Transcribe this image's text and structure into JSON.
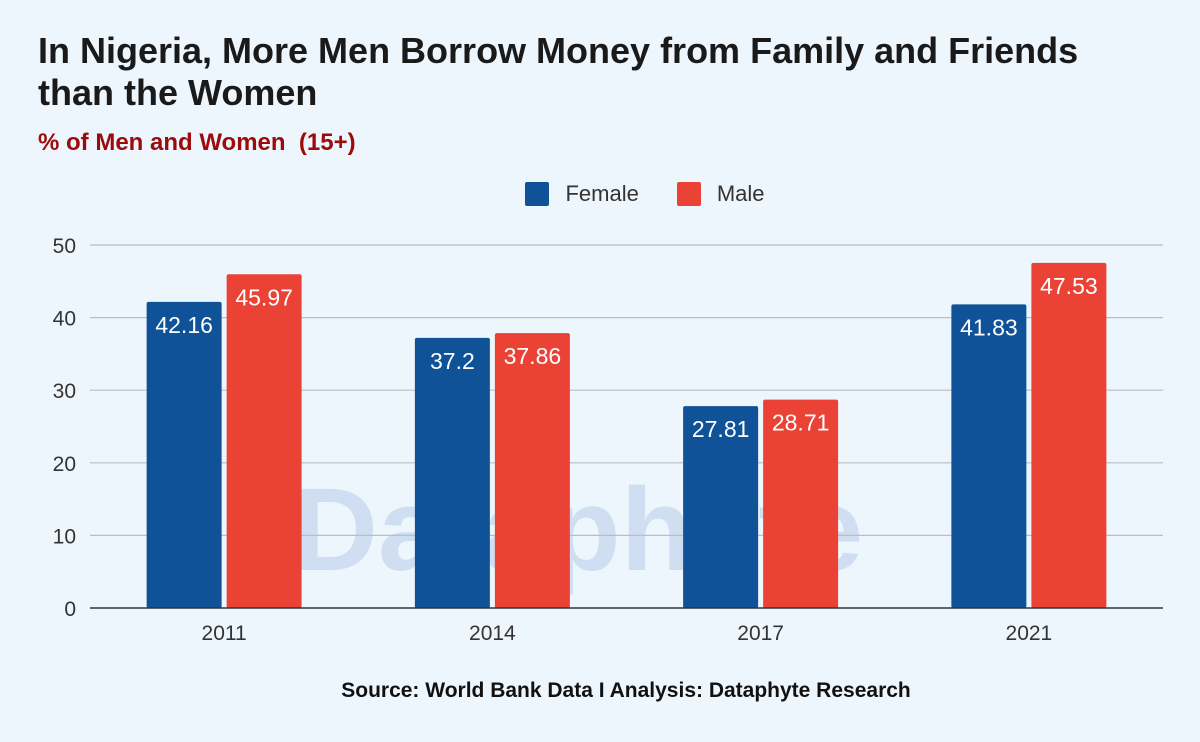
{
  "title": "In Nigeria, More Men Borrow Money from Family and Friends than the Women",
  "subtitle": "% of Men and Women  (15+)",
  "source": "Source: World Bank Data I Analysis: Dataphyte Research",
  "watermark": "Dataphyte",
  "colors": {
    "female": "#0f5297",
    "male": "#ea4335",
    "gridline": "#bdbdbd",
    "axis": "#333333"
  },
  "chart_data": {
    "type": "bar",
    "categories": [
      "2011",
      "2014",
      "2017",
      "2021"
    ],
    "series": [
      {
        "name": "Female",
        "values": [
          42.16,
          37.2,
          27.81,
          41.83
        ],
        "color": "#0f5297"
      },
      {
        "name": "Male",
        "values": [
          45.97,
          37.86,
          28.71,
          47.53
        ],
        "color": "#ea4335"
      }
    ],
    "data_labels": [
      [
        "42.16",
        "37.2",
        "27.81",
        "41.83"
      ],
      [
        "45.97",
        "37.86",
        "28.71",
        "47.53"
      ]
    ],
    "y_ticks": [
      "0",
      "10",
      "20",
      "30",
      "40",
      "50"
    ],
    "ylim": [
      0,
      50
    ],
    "grid": true,
    "legend_position": "top-center"
  }
}
